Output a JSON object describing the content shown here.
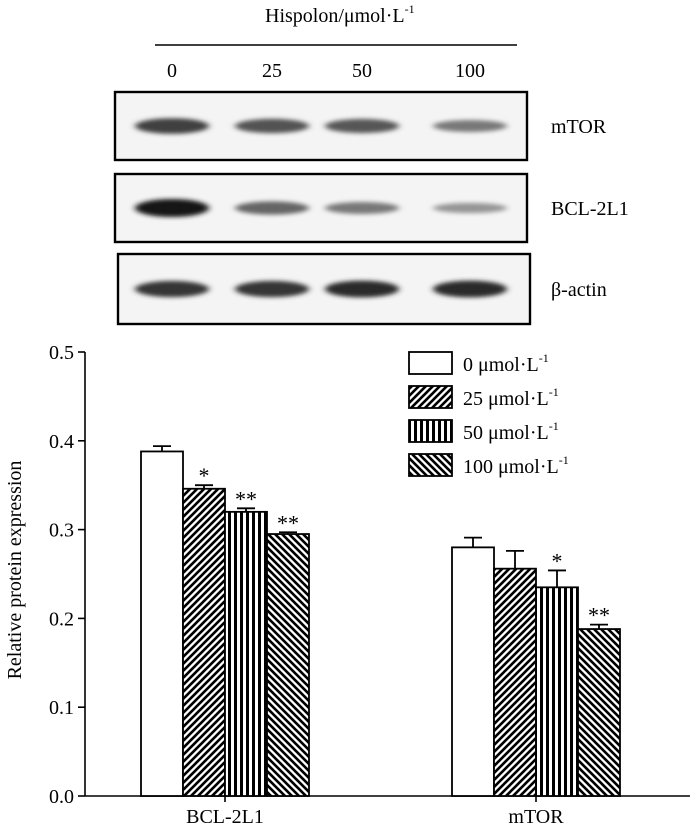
{
  "blot": {
    "header": {
      "prefix": "Hispolon/μmol·L",
      "superscript": "-1"
    },
    "lanes": [
      "0",
      "25",
      "50",
      "100"
    ],
    "rows": [
      {
        "label": "mTOR",
        "bands": [
          0.8,
          0.7,
          0.68,
          0.5
        ],
        "band_width": 1.0
      },
      {
        "label": "BCL-2L1",
        "bands": [
          1.0,
          0.6,
          0.5,
          0.35
        ],
        "band_width": 1.0
      },
      {
        "label": "β-actin",
        "bands": [
          0.85,
          0.85,
          0.9,
          0.9
        ],
        "band_width": 1.0
      }
    ]
  },
  "chart_data": {
    "type": "bar",
    "ylabel": "Relative protein expression",
    "xlabel": "",
    "ylim": [
      0,
      0.5
    ],
    "yticks": [
      "0.0",
      "0.1",
      "0.2",
      "0.3",
      "0.4",
      "0.5"
    ],
    "categories": [
      "BCL-2L1",
      "mTOR"
    ],
    "legend_position": "top-right",
    "series": [
      {
        "name": "0 μmol·L",
        "sup": "-1",
        "pattern": "none",
        "values": [
          0.388,
          0.28
        ],
        "errors": [
          0.006,
          0.011
        ],
        "annotations": [
          "",
          ""
        ]
      },
      {
        "name": "25 μmol·L",
        "sup": "-1",
        "pattern": "diagonal-up",
        "values": [
          0.346,
          0.256
        ],
        "errors": [
          0.004,
          0.02
        ],
        "annotations": [
          "*",
          ""
        ]
      },
      {
        "name": "50 μmol·L",
        "sup": "-1",
        "pattern": "vertical",
        "values": [
          0.32,
          0.235
        ],
        "errors": [
          0.004,
          0.019
        ],
        "annotations": [
          "**",
          "*"
        ]
      },
      {
        "name": "100 μmol·L",
        "sup": "-1",
        "pattern": "diagonal-down",
        "values": [
          0.295,
          0.188
        ],
        "errors": [
          0.002,
          0.005
        ],
        "annotations": [
          "**",
          "**"
        ]
      }
    ]
  }
}
